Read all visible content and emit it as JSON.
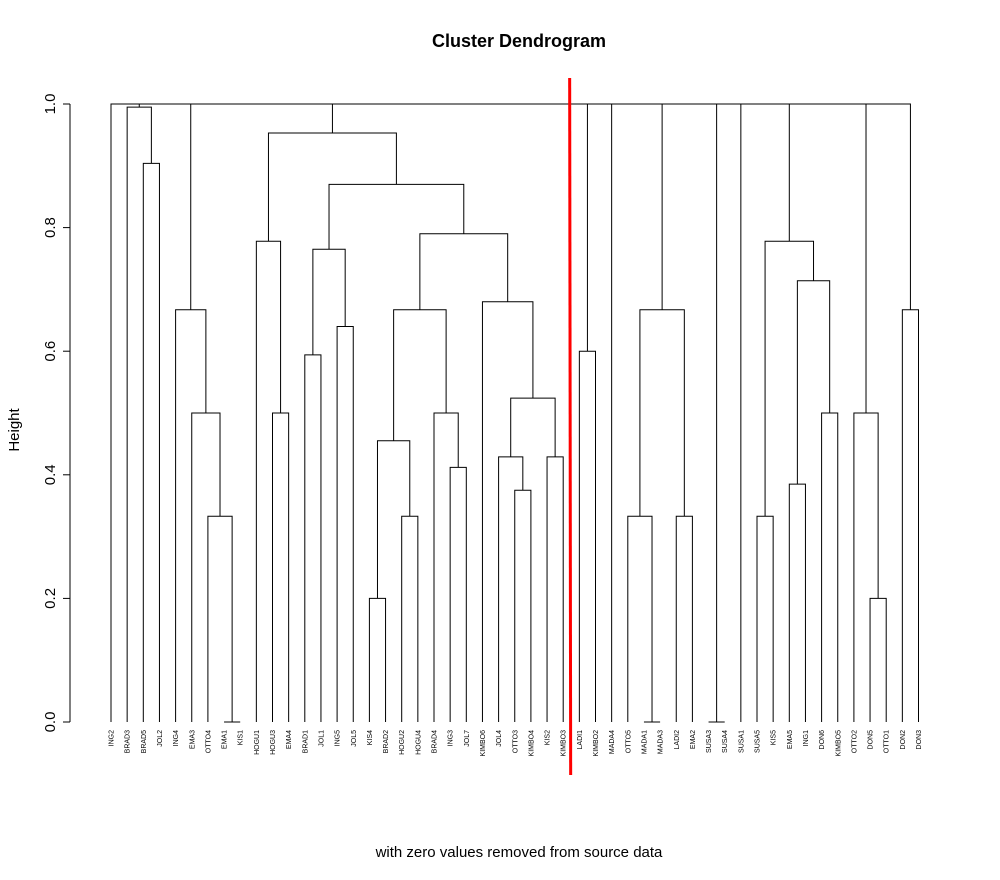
{
  "chart_data": {
    "type": "dendrogram",
    "title": "Cluster Dendrogram",
    "subtitle": "with zero values removed from source data",
    "xlabel": "",
    "ylabel": "Height",
    "ylim": [
      0,
      1
    ],
    "yticks": [
      "0.0",
      "0.2",
      "0.4",
      "0.6",
      "0.8",
      "1.0"
    ],
    "leaves": [
      "ING2",
      "BRAD3",
      "BRAD5",
      "JOL2",
      "ING4",
      "EMA3",
      "OTTO4",
      "EMA1",
      "KIS1",
      "HOGU1",
      "HOGU3",
      "EMA4",
      "BRAD1",
      "JOL1",
      "ING5",
      "JOL5",
      "KIS4",
      "BRAD2",
      "HOGU2",
      "HOGU4",
      "BRAD4",
      "ING3",
      "JOL7",
      "KIMBO6",
      "JOL4",
      "OTTO3",
      "KIMBO4",
      "KIS2",
      "KIMBO3",
      "LADI1",
      "KIMBO2",
      "MADA4",
      "OTTO5",
      "MADA1",
      "MADA3",
      "LADI2",
      "EMA2",
      "SUSA3",
      "SUSA4",
      "SUSA1",
      "SUSA5",
      "KIS5",
      "EMA5",
      "ING1",
      "DON6",
      "KIMBO5",
      "OTTO2",
      "DON5",
      "OTTO1",
      "DON2",
      "DON3"
    ],
    "merges": [
      {
        "h": 0.904,
        "a": "JOL2",
        "b": "BRAD5"
      },
      {
        "h": 0.995,
        "a": "BRAD3",
        "b": "c0"
      },
      {
        "h": 0.0,
        "a": "EMA1",
        "b": "KIS1"
      },
      {
        "h": 0.333,
        "a": "OTTO4",
        "b": "c2"
      },
      {
        "h": 0.5,
        "a": "EMA3",
        "b": "c3"
      },
      {
        "h": 0.667,
        "a": "ING4",
        "b": "c4"
      },
      {
        "h": 0.5,
        "a": "HOGU3",
        "b": "EMA4"
      },
      {
        "h": 0.778,
        "a": "HOGU1",
        "b": "c6"
      },
      {
        "h": 0.594,
        "a": "BRAD1",
        "b": "JOL1"
      },
      {
        "h": 0.64,
        "a": "ING5",
        "b": "JOL5"
      },
      {
        "h": 0.765,
        "a": "c8",
        "b": "c9"
      },
      {
        "h": 0.2,
        "a": "KIS4",
        "b": "BRAD2"
      },
      {
        "h": 0.333,
        "a": "HOGU2",
        "b": "HOGU4"
      },
      {
        "h": 0.455,
        "a": "c11",
        "b": "c12"
      },
      {
        "h": 0.412,
        "a": "ING3",
        "b": "JOL7"
      },
      {
        "h": 0.5,
        "a": "BRAD4",
        "b": "c14"
      },
      {
        "h": 0.667,
        "a": "c13",
        "b": "c15"
      },
      {
        "h": 0.375,
        "a": "OTTO3",
        "b": "KIMBO4"
      },
      {
        "h": 0.429,
        "a": "JOL4",
        "b": "c17"
      },
      {
        "h": 0.429,
        "a": "KIS2",
        "b": "KIMBO3"
      },
      {
        "h": 0.524,
        "a": "c18",
        "b": "c19"
      },
      {
        "h": 0.68,
        "a": "KIMBO6",
        "b": "c20"
      },
      {
        "h": 0.79,
        "a": "c16",
        "b": "c21"
      },
      {
        "h": 0.87,
        "a": "c10",
        "b": "c22"
      },
      {
        "h": 0.953,
        "a": "c7",
        "b": "c23"
      },
      {
        "h": 0.6,
        "a": "LADI1",
        "b": "KIMBO2"
      },
      {
        "h": 0.0,
        "a": "MADA1",
        "b": "MADA3"
      },
      {
        "h": 0.333,
        "a": "OTTO5",
        "b": "c26"
      },
      {
        "h": 0.333,
        "a": "LADI2",
        "b": "EMA2"
      },
      {
        "h": 0.667,
        "a": "c27",
        "b": "c28"
      },
      {
        "h": 0.0,
        "a": "SUSA3",
        "b": "SUSA4"
      },
      {
        "h": 0.333,
        "a": "SUSA5",
        "b": "KIS5"
      },
      {
        "h": 0.385,
        "a": "EMA5",
        "b": "ING1"
      },
      {
        "h": 0.5,
        "a": "DON6",
        "b": "KIMBO5"
      },
      {
        "h": 0.714,
        "a": "c32",
        "b": "c33"
      },
      {
        "h": 0.778,
        "a": "c31",
        "b": "c34"
      },
      {
        "h": 0.2,
        "a": "DON5",
        "b": "OTTO1"
      },
      {
        "h": 0.5,
        "a": "OTTO2",
        "b": "c36"
      },
      {
        "h": 0.667,
        "a": "DON2",
        "b": "DON3"
      },
      {
        "h": 1.0,
        "a": "c37",
        "b": "c38"
      },
      {
        "h": 1.0,
        "a": "ING2",
        "b": "c1"
      },
      {
        "h": 1.0,
        "a": "c40",
        "b": "c5"
      },
      {
        "h": 1.0,
        "a": "c41",
        "b": "c24"
      },
      {
        "h": 1.0,
        "a": "c42",
        "b": "c25"
      },
      {
        "h": 1.0,
        "a": "c43",
        "b": "MADA4"
      },
      {
        "h": 1.0,
        "a": "c44",
        "b": "c29"
      },
      {
        "h": 1.0,
        "a": "c45",
        "b": "c30"
      },
      {
        "h": 1.0,
        "a": "c46",
        "b": "SUSA1"
      },
      {
        "h": 1.0,
        "a": "c47",
        "b": "c35"
      },
      {
        "h": 1.0,
        "a": "c48",
        "b": "c39"
      }
    ],
    "cut_line": {
      "after_leaf": "KIMBO3",
      "color": "#ff0000"
    },
    "line_color": "#000000",
    "grid": false
  }
}
